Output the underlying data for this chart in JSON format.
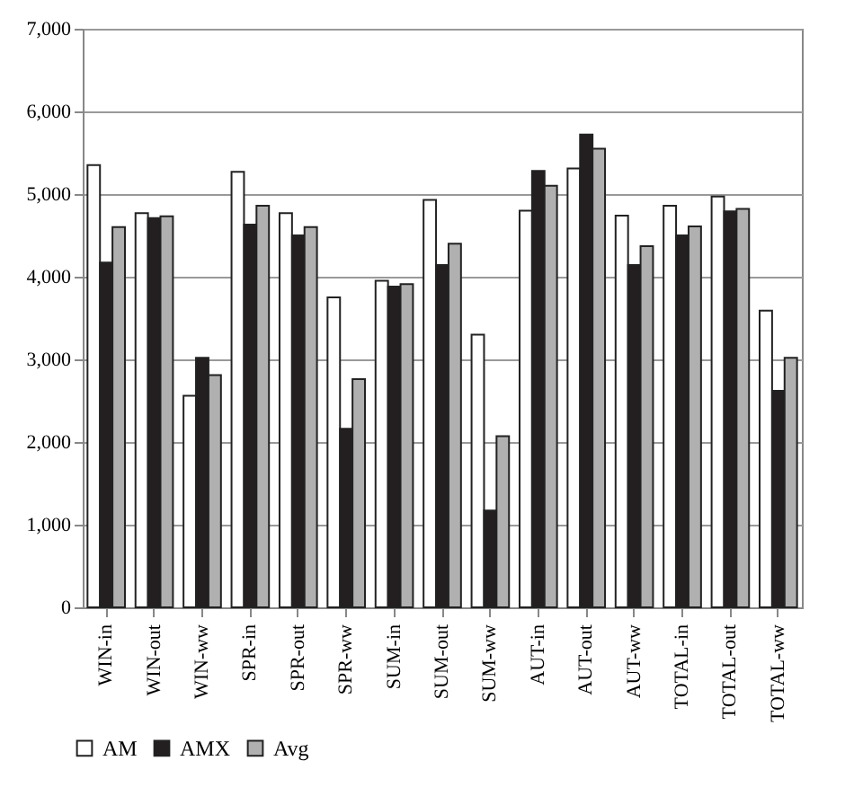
{
  "chart_data": {
    "type": "bar",
    "categories": [
      "WIN-in",
      "WIN-out",
      "WIN-ww",
      "SPR-in",
      "SPR-out",
      "SPR-ww",
      "SUM-in",
      "SUM-out",
      "SUM-ww",
      "AUT-in",
      "AUT-out",
      "AUT-ww",
      "TOTAL-in",
      "TOTAL-out",
      "TOTAL-ww"
    ],
    "series": [
      {
        "name": "AM",
        "color": "#ffffff",
        "values": [
          5350,
          4770,
          2560,
          5270,
          4770,
          3750,
          3950,
          4930,
          3300,
          4800,
          5310,
          4740,
          4860,
          4970,
          3590
        ]
      },
      {
        "name": "AMX",
        "color": "#231f20",
        "values": [
          4170,
          4710,
          3020,
          4630,
          4500,
          2160,
          3880,
          4140,
          1170,
          5280,
          5720,
          4140,
          4500,
          4790,
          2620
        ]
      },
      {
        "name": "Avg",
        "color": "#b0b0b0",
        "values": [
          4600,
          4730,
          2810,
          4860,
          4600,
          2760,
          3910,
          4400,
          2070,
          5100,
          5550,
          4370,
          4610,
          4820,
          3020
        ]
      }
    ],
    "ylim": [
      0,
      7000
    ],
    "yticks": [
      0,
      {
        "value": 1000,
        "label": "1,000"
      },
      {
        "value": 2000,
        "label": "2,000"
      },
      {
        "value": 3000,
        "label": "3,000"
      },
      {
        "value": 4000,
        "label": "4,000"
      },
      {
        "value": 5000,
        "label": "5,000"
      },
      {
        "value": 6000,
        "label": "6,000"
      },
      {
        "value": 7000,
        "label": "7,000"
      }
    ],
    "grid": "y",
    "legend": "bottom left"
  }
}
